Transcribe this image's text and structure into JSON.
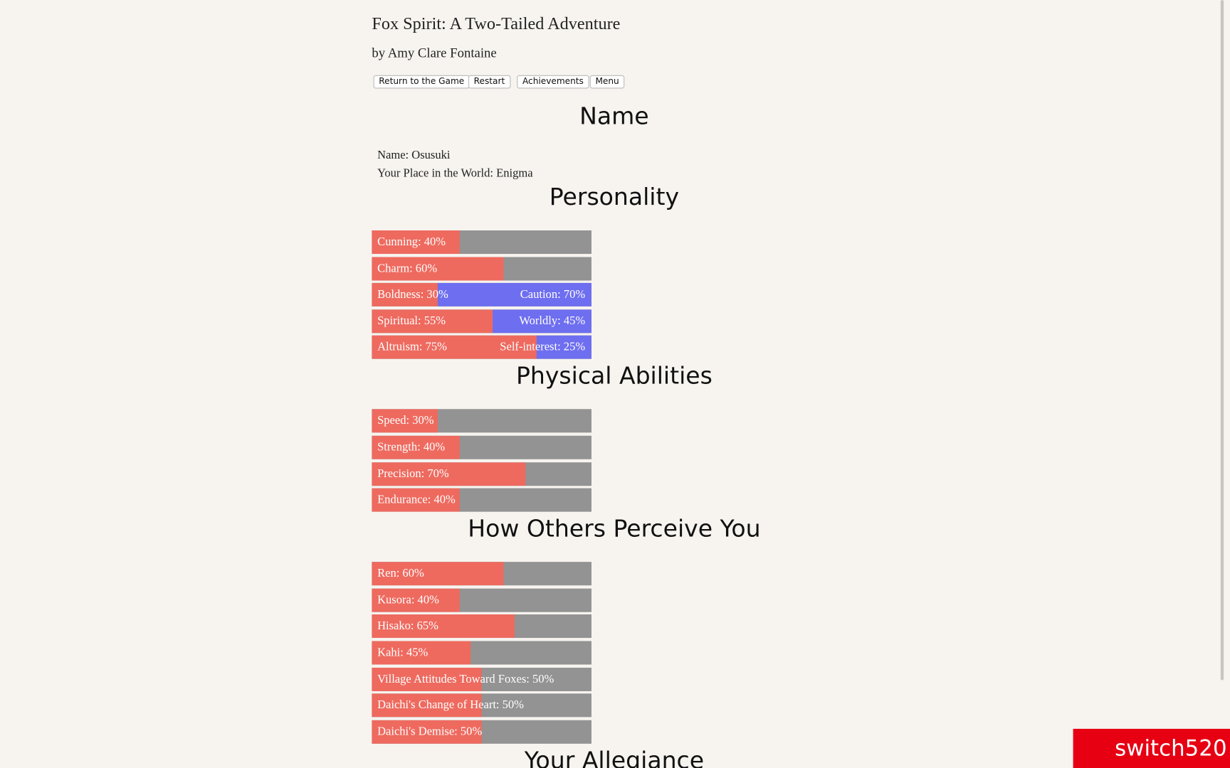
{
  "header": {
    "title": "Fox Spirit: A Two-Tailed Adventure",
    "byline": "by Amy Clare Fontaine"
  },
  "buttons": [
    "Return to the Game",
    "Restart",
    "Achievements",
    "Menu"
  ],
  "sections": [
    {
      "heading": "Name",
      "lines": [
        "Name: Osusuki",
        "Your Place in the World: Enigma"
      ]
    },
    {
      "heading": "Personality",
      "bars": [
        {
          "label": "Cunning: 40%",
          "value": 40
        },
        {
          "label": "Charm: 60%",
          "value": 60
        },
        {
          "label": "Boldness: 30%",
          "value": 30,
          "opposed_label": "Caution: 70%",
          "opposed_value": 70
        },
        {
          "label": "Spiritual: 55%",
          "value": 55,
          "opposed_label": "Worldly: 45%",
          "opposed_value": 45
        },
        {
          "label": "Altruism: 75%",
          "value": 75,
          "opposed_label": "Self-interest: 25%",
          "opposed_value": 25
        }
      ]
    },
    {
      "heading": "Physical Abilities",
      "bars": [
        {
          "label": "Speed: 30%",
          "value": 30
        },
        {
          "label": "Strength: 40%",
          "value": 40
        },
        {
          "label": "Precision: 70%",
          "value": 70
        },
        {
          "label": "Endurance: 40%",
          "value": 40
        }
      ]
    },
    {
      "heading": "How Others Perceive You",
      "bars": [
        {
          "label": "Ren: 60%",
          "value": 60
        },
        {
          "label": "Kusora: 40%",
          "value": 40
        },
        {
          "label": "Hisako: 65%",
          "value": 65
        },
        {
          "label": "Kahi: 45%",
          "value": 45
        },
        {
          "label": "Village Attitudes Toward Foxes: 50%",
          "value": 50
        },
        {
          "label": "Daichi's Change of Heart: 50%",
          "value": 50
        },
        {
          "label": "Daichi's Demise: 50%",
          "value": 50
        }
      ]
    },
    {
      "heading": "Your Allegiance"
    }
  ],
  "watermark": "switch520"
}
